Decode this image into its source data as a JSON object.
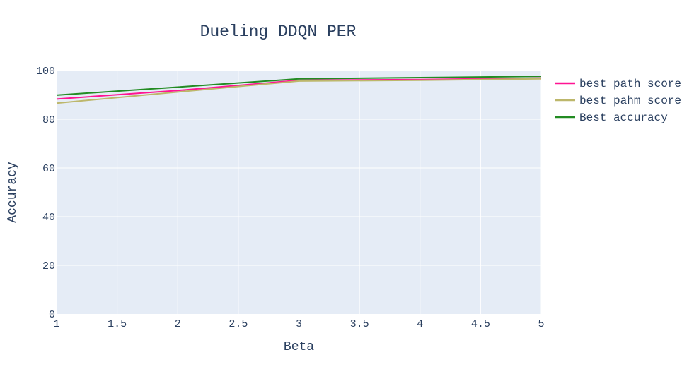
{
  "chart_data": {
    "type": "line",
    "title": "Dueling DDQN PER",
    "xlabel": "Beta",
    "ylabel": "Accuracy",
    "xlim": [
      1,
      5
    ],
    "ylim": [
      0,
      100
    ],
    "x_ticks": [
      "1",
      "1.5",
      "2",
      "2.5",
      "3",
      "3.5",
      "4",
      "4.5",
      "5"
    ],
    "y_ticks": [
      "0",
      "20",
      "40",
      "60",
      "80",
      "100"
    ],
    "grid": true,
    "legend_position": "right",
    "x": [
      1,
      2,
      3,
      4,
      5
    ],
    "series": [
      {
        "name": "best path score",
        "color": "#ff1493",
        "values": [
          88.3,
          91.8,
          96.0,
          96.3,
          96.9
        ]
      },
      {
        "name": "best pahm score",
        "color": "#bdb76b",
        "values": [
          86.6,
          91.2,
          95.7,
          96.0,
          96.6
        ]
      },
      {
        "name": "Best accuracy",
        "color": "#228b22",
        "values": [
          89.9,
          93.2,
          96.6,
          97.1,
          97.6
        ]
      }
    ],
    "colors": {
      "plot_background": "#e5ecf6",
      "grid": "#ffffff",
      "text": "#2a3f5f"
    }
  }
}
